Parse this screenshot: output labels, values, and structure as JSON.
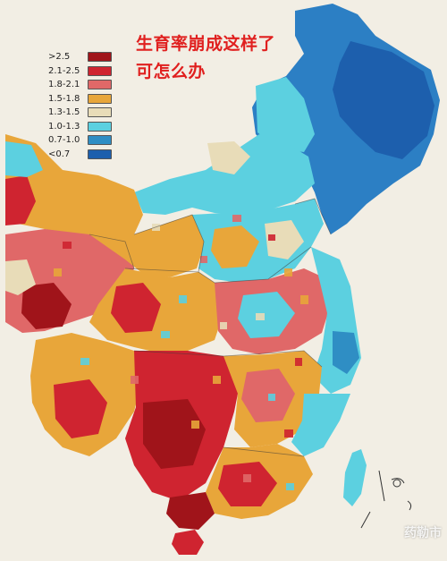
{
  "title_lines": [
    "生育率崩成这样了",
    "可怎么办"
  ],
  "legend": [
    {
      "label": ">2.5",
      "color": "#a0141a"
    },
    {
      "label": "2.1-2.5",
      "color": "#cf2430"
    },
    {
      "label": "1.8-2.1",
      "color": "#e06868"
    },
    {
      "label": "1.5-1.8",
      "color": "#e8a63a"
    },
    {
      "label": "1.3-1.5",
      "color": "#e8dcb8"
    },
    {
      "label": "1.0-1.3",
      "color": "#5cd0e0"
    },
    {
      "label": "0.7-1.0",
      "color": "#2f8ec4"
    },
    {
      "label": "<0.7",
      "color": "#1d5fad"
    }
  ],
  "watermark": "药勒市"
}
